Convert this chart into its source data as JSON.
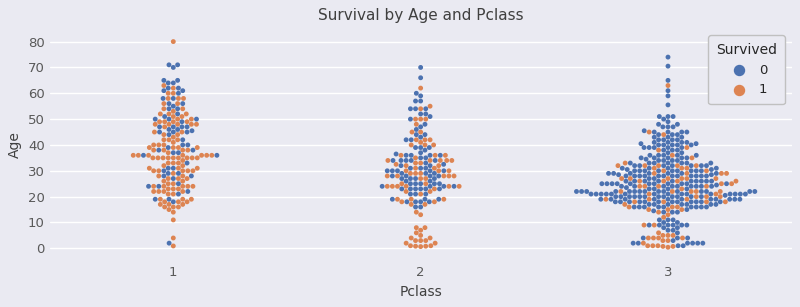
{
  "title": "Survival by Age and Pclass",
  "xlabel": "Pclass",
  "ylabel": "Age",
  "legend_title": "Survived",
  "legend_labels": [
    "0",
    "1"
  ],
  "colors": {
    "0": "#4C72B0",
    "1": "#DD8452"
  },
  "background_color": "#EAEAF2",
  "grid_color": "white",
  "ylim": [
    -5,
    85
  ],
  "yticks": [
    0,
    10,
    20,
    30,
    40,
    50,
    60,
    70,
    80
  ],
  "xticks": [
    1,
    2,
    3
  ],
  "figsize": [
    8.0,
    3.07
  ],
  "dpi": 100,
  "point_size": 3.5,
  "point_linewidth": 0
}
